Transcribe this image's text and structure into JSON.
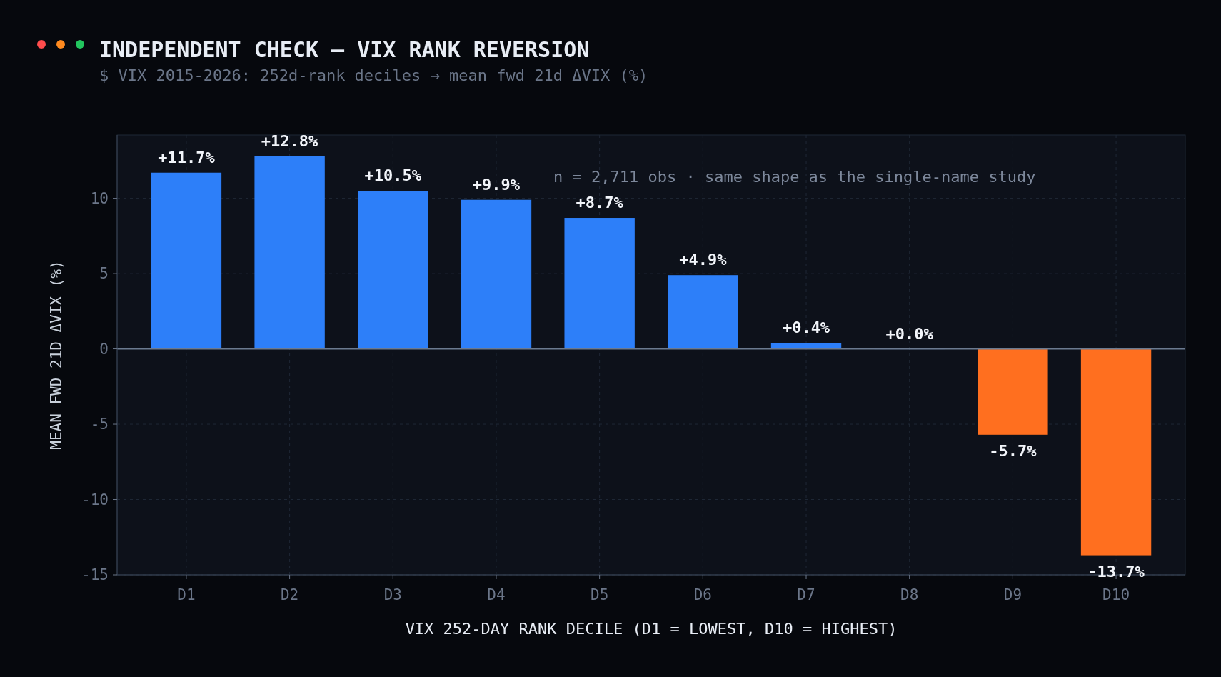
{
  "chart_data": {
    "type": "bar",
    "title": "INDEPENDENT CHECK — VIX RANK REVERSION",
    "subtitle": "$ VIX 2015-2026: 252d-rank deciles → mean fwd 21d ΔVIX (%)",
    "xlabel": "VIX 252-DAY RANK DECILE (D1 = LOWEST, D10 = HIGHEST)",
    "ylabel": "MEAN FWD 21D ΔVIX (%)",
    "categories": [
      "D1",
      "D2",
      "D3",
      "D4",
      "D5",
      "D6",
      "D7",
      "D8",
      "D9",
      "D10"
    ],
    "values": [
      11.7,
      12.8,
      10.5,
      9.9,
      8.7,
      4.9,
      0.4,
      0.0,
      -5.7,
      -13.7
    ],
    "colors": [
      "#2d7ff9",
      "#2d7ff9",
      "#2d7ff9",
      "#2d7ff9",
      "#2d7ff9",
      "#2d7ff9",
      "#2d7ff9",
      "#2d7ff9",
      "#ff6f1f",
      "#ff6f1f"
    ],
    "value_labels": [
      "+11.7%",
      "+12.8%",
      "+10.5%",
      "+9.9%",
      "+8.7%",
      "+4.9%",
      "+0.4%",
      "+0.0%",
      "-5.7%",
      "-13.7%"
    ],
    "ylim": [
      -15,
      14.2
    ],
    "yticks": [
      -15,
      -10,
      -5,
      0,
      5,
      10
    ],
    "grid": true,
    "annotations": [
      "n = 2,711 obs · same shape as the single-name study"
    ]
  }
}
